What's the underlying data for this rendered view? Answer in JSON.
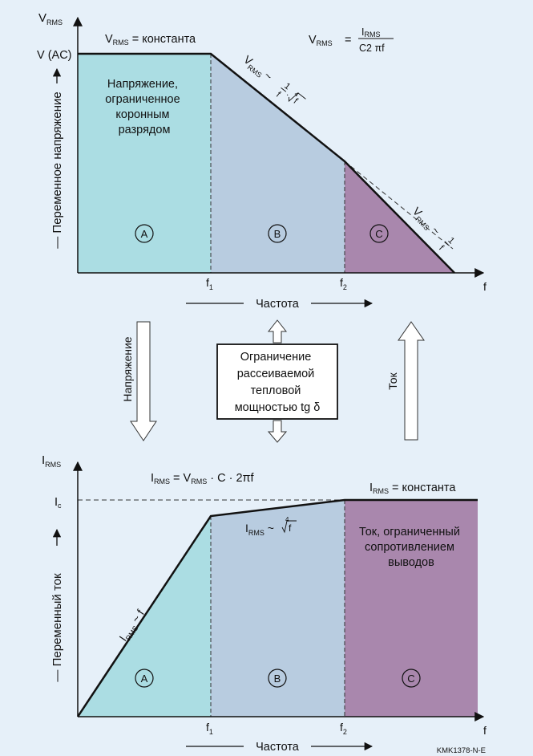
{
  "colors": {
    "background": "#e6f0f9",
    "region_a": "#abdde3",
    "region_b": "#b8cce0",
    "region_c": "#a987ad",
    "line": "#111111"
  },
  "top": {
    "y_axis_main": "V",
    "y_axis_sub": "RMS",
    "y_tick": "V (AC)",
    "y_axis_label": "— Переменное напряжение",
    "const_eq_main": "V",
    "const_eq_sub": "RMS",
    "const_eq_rest": " = константа",
    "formula_lhs_main": "V",
    "formula_lhs_sub": "RMS",
    "formula_eq": "=",
    "formula_num_main": "I",
    "formula_num_sub": "RMS",
    "formula_den": "C2   πf",
    "slope_b_main": "V",
    "slope_b_sub": "RMS",
    "slope_b_rest": "~",
    "slope_b_one": "1",
    "slope_b_f": "f",
    "slope_b_dot": "·",
    "slope_b_root_idx": "4",
    "slope_b_root_f": "f",
    "slope_c_main": "V",
    "slope_c_sub": "RMS",
    "slope_c_rest": "~",
    "slope_c_one": "1",
    "slope_c_f": "f",
    "region_a_lines": [
      "Напряжение,",
      "ограниченное",
      "коронным",
      "разрядом"
    ],
    "circle_a": "A",
    "circle_b": "B",
    "circle_c": "C",
    "x_tick1_main": "f",
    "x_tick1_sub": "1",
    "x_tick2_main": "f",
    "x_tick2_sub": "2",
    "x_axis_end": "f",
    "x_caption": "Частота"
  },
  "middle": {
    "voltage_arrow_label": "Напряжение",
    "current_arrow_label": "Ток",
    "box_lines": [
      "Ограничение",
      "рассеиваемой",
      "тепловой",
      "мощностью tg δ"
    ]
  },
  "bottom": {
    "y_axis_main": "I",
    "y_axis_sub": "RMS",
    "y_tick_main": "I",
    "y_tick_sub": "c",
    "y_axis_label": "— Переменный ток",
    "formula_main1": "I",
    "formula_sub1": "RMS",
    "formula_mid": " = V",
    "formula_sub2": "RMS",
    "formula_rest": " · C ·   2πf",
    "const_main": "I",
    "const_sub": "RMS",
    "const_rest": " = константа",
    "slope_a_main": "I",
    "slope_a_sub": "RMS",
    "slope_a_rest": " ~ f",
    "slope_b_main": "I",
    "slope_b_sub": "RMS",
    "slope_b_rest": " ~",
    "slope_b_root_idx": "4",
    "slope_b_root_f": "f",
    "region_c_lines": [
      "Ток, ограниченный",
      "сопротивлением",
      "выводов"
    ],
    "circle_a": "A",
    "circle_b": "B",
    "circle_c": "C",
    "x_tick1_main": "f",
    "x_tick1_sub": "1",
    "x_tick2_main": "f",
    "x_tick2_sub": "2",
    "x_axis_end": "f",
    "x_caption": "Частота"
  },
  "footer": {
    "code": "KMK1378-N-E"
  }
}
